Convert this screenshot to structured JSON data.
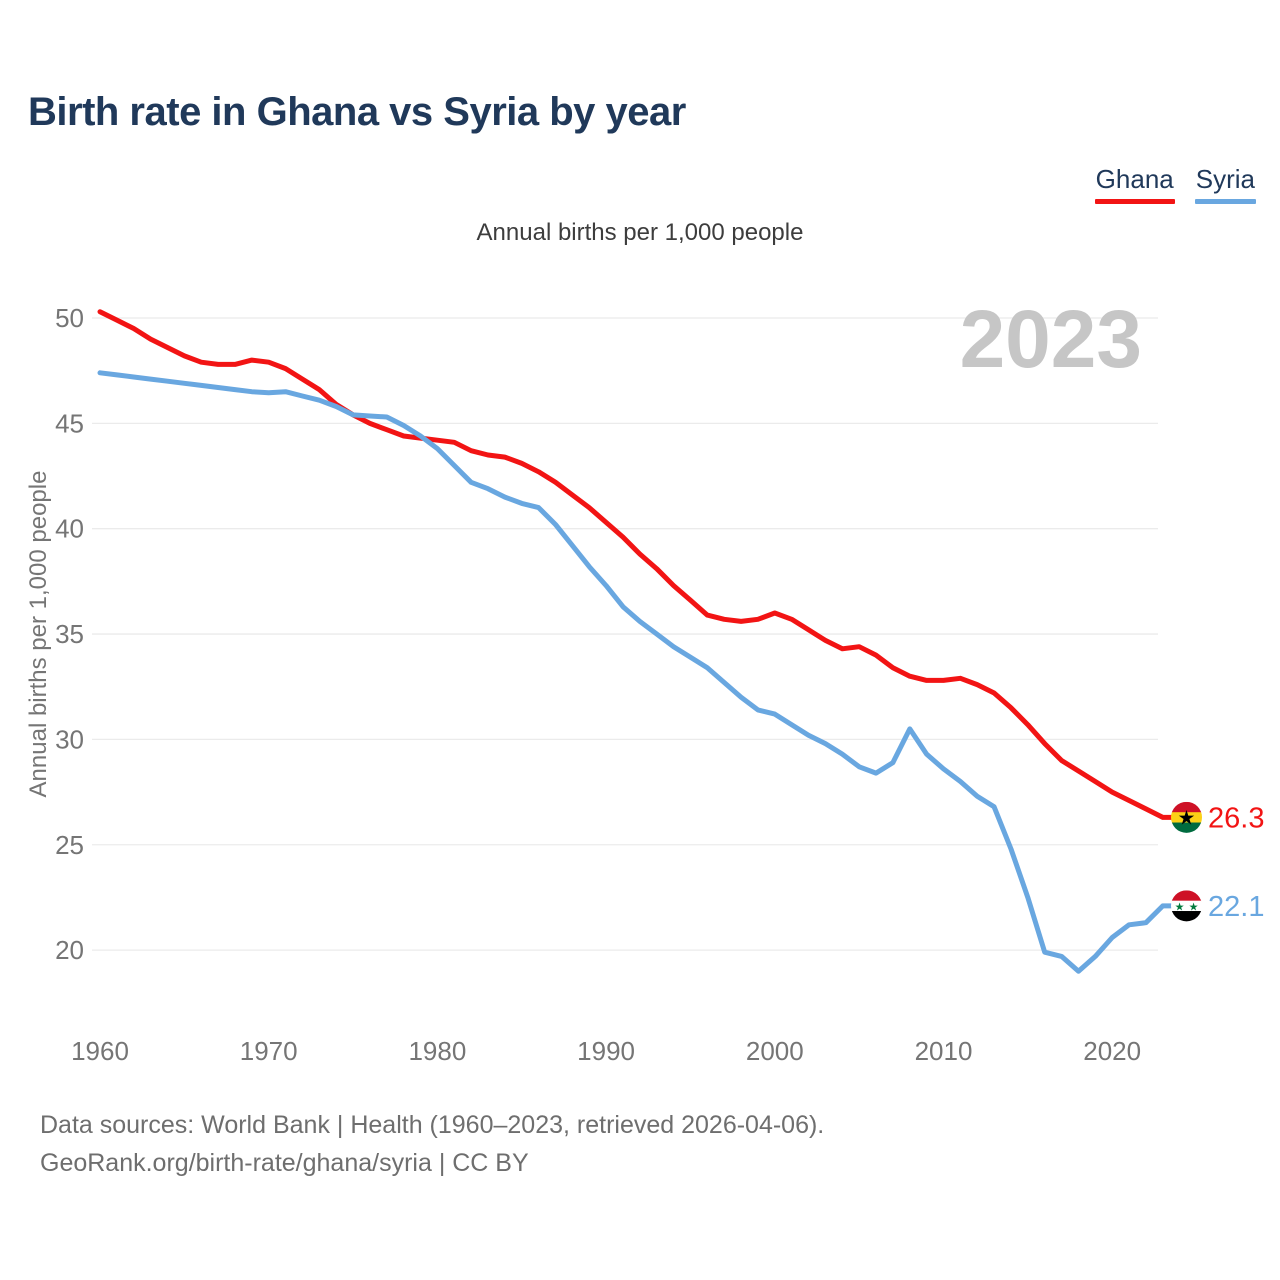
{
  "header": {
    "title": "Birth rate in Ghana vs Syria by year"
  },
  "subtitle": "Annual births per 1,000 people",
  "watermark": "2023",
  "legend": [
    {
      "label": "Ghana",
      "color": "#f21414"
    },
    {
      "label": "Syria",
      "color": "#69a7e0"
    }
  ],
  "footer": {
    "line1": "Data sources: World Bank | Health (1960–2023, retrieved 2026-04-06).",
    "line2": "GeoRank.org/birth-rate/ghana/syria | CC BY"
  },
  "end_labels": [
    {
      "series": "Ghana",
      "value": "26.3",
      "flag": "ghana",
      "color": "#f21414"
    },
    {
      "series": "Syria",
      "value": "22.1",
      "flag": "syria",
      "color": "#69a7e0"
    }
  ],
  "flag_icons": {
    "ghana": {
      "stripes": [
        "#ce1126",
        "#fcd116",
        "#006b3f"
      ],
      "star_color": "#000000",
      "stars": 1
    },
    "syria": {
      "stripes": [
        "#ce1126",
        "#ffffff",
        "#000000"
      ],
      "star_color": "#007a3d",
      "stars": 2
    }
  },
  "chart_data": {
    "type": "line",
    "title": "Birth rate in Ghana vs Syria by year",
    "ylabel": "Annual births per 1,000 people",
    "xlabel": "",
    "grid": true,
    "legend_position": "top-right",
    "xlim": [
      1960,
      2023
    ],
    "ylim": [
      18.5,
      51
    ],
    "x_ticks": [
      1960,
      1970,
      1980,
      1990,
      2000,
      2010,
      2020
    ],
    "y_ticks": [
      20,
      25,
      30,
      35,
      40,
      45,
      50
    ],
    "x": [
      1960,
      1961,
      1962,
      1963,
      1964,
      1965,
      1966,
      1967,
      1968,
      1969,
      1970,
      1971,
      1972,
      1973,
      1974,
      1975,
      1976,
      1977,
      1978,
      1979,
      1980,
      1981,
      1982,
      1983,
      1984,
      1985,
      1986,
      1987,
      1988,
      1989,
      1990,
      1991,
      1992,
      1993,
      1994,
      1995,
      1996,
      1997,
      1998,
      1999,
      2000,
      2001,
      2002,
      2003,
      2004,
      2005,
      2006,
      2007,
      2008,
      2009,
      2010,
      2011,
      2012,
      2013,
      2014,
      2015,
      2016,
      2017,
      2018,
      2019,
      2020,
      2021,
      2022,
      2023
    ],
    "series": [
      {
        "name": "Ghana",
        "color": "#f21414",
        "values": [
          50.3,
          49.9,
          49.5,
          49.0,
          48.6,
          48.2,
          47.9,
          47.8,
          47.8,
          48.0,
          47.9,
          47.6,
          47.1,
          46.6,
          45.9,
          45.4,
          45.0,
          44.7,
          44.4,
          44.3,
          44.2,
          44.1,
          43.7,
          43.5,
          43.4,
          43.1,
          42.7,
          42.2,
          41.6,
          41.0,
          40.3,
          39.6,
          38.8,
          38.1,
          37.3,
          36.6,
          35.9,
          35.7,
          35.6,
          35.7,
          36.0,
          35.7,
          35.2,
          34.7,
          34.3,
          34.4,
          34.0,
          33.4,
          33.0,
          32.8,
          32.8,
          32.9,
          32.6,
          32.2,
          31.5,
          30.7,
          29.8,
          29.0,
          28.5,
          28.0,
          27.5,
          27.1,
          26.7,
          26.3
        ]
      },
      {
        "name": "Syria",
        "color": "#69a7e0",
        "values": [
          47.4,
          47.3,
          47.2,
          47.1,
          47.0,
          46.9,
          46.8,
          46.7,
          46.6,
          46.5,
          46.45,
          46.5,
          46.3,
          46.1,
          45.8,
          45.4,
          45.35,
          45.3,
          44.9,
          44.4,
          43.8,
          43.0,
          42.2,
          41.9,
          41.5,
          41.2,
          41.0,
          40.2,
          39.2,
          38.2,
          37.3,
          36.3,
          35.6,
          35.0,
          34.4,
          33.9,
          33.4,
          32.7,
          32.0,
          31.4,
          31.2,
          30.7,
          30.2,
          29.8,
          29.3,
          28.7,
          28.4,
          28.9,
          30.5,
          29.3,
          28.6,
          28.0,
          27.3,
          26.8,
          24.8,
          22.5,
          19.9,
          19.7,
          19.0,
          19.7,
          20.6,
          21.2,
          21.3,
          22.1
        ]
      }
    ]
  }
}
